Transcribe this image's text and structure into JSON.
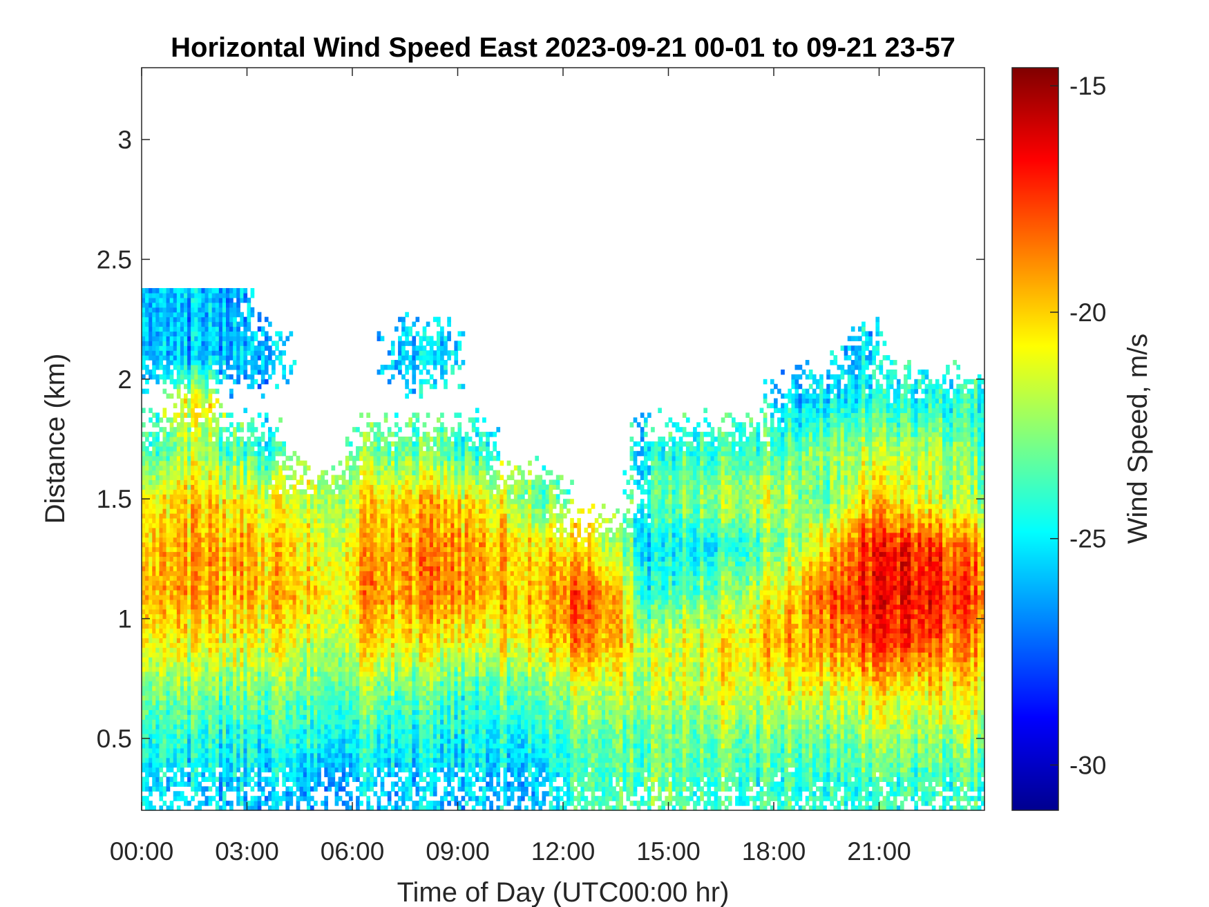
{
  "chart_data": {
    "type": "heatmap",
    "title": "Horizontal Wind Speed East 2023-09-21 00-01 to 09-21 23-57",
    "xlabel": "Time of Day (UTC00:00 hr)",
    "ylabel": "Distance (km)",
    "colorbar_label": "Wind Speed, m/s",
    "colormap": "jet",
    "xlim_hours": [
      0,
      24
    ],
    "ylim": [
      0.2,
      3.3
    ],
    "clim": [
      -31,
      -14.6
    ],
    "x_ticks": [
      {
        "value": 0,
        "label": "00:00"
      },
      {
        "value": 3,
        "label": "03:00"
      },
      {
        "value": 6,
        "label": "06:00"
      },
      {
        "value": 9,
        "label": "09:00"
      },
      {
        "value": 12,
        "label": "12:00"
      },
      {
        "value": 15,
        "label": "15:00"
      },
      {
        "value": 18,
        "label": "18:00"
      },
      {
        "value": 21,
        "label": "21:00"
      }
    ],
    "y_ticks": [
      {
        "value": 0.5,
        "label": "0.5"
      },
      {
        "value": 1,
        "label": "1"
      },
      {
        "value": 1.5,
        "label": "1.5"
      },
      {
        "value": 2,
        "label": "2"
      },
      {
        "value": 2.5,
        "label": "2.5"
      },
      {
        "value": 3,
        "label": "3"
      }
    ],
    "colorbar_ticks": [
      {
        "value": -15,
        "label": "-15"
      },
      {
        "value": -20,
        "label": "-20"
      },
      {
        "value": -25,
        "label": "-25"
      },
      {
        "value": -30,
        "label": "-30"
      }
    ],
    "grid": false,
    "heights_km": [
      0.3,
      0.5,
      0.7,
      0.9,
      1.1,
      1.3,
      1.5,
      1.7,
      1.9,
      2.1,
      2.3
    ],
    "times_hours": [
      0.5,
      1.5,
      2.5,
      3.5,
      4.5,
      5.5,
      6.5,
      7.5,
      8.5,
      9.5,
      10.5,
      11.5,
      12.5,
      13.5,
      14.5,
      15.5,
      16.5,
      17.5,
      18.5,
      19.5,
      20.5,
      21.5,
      22.5,
      23.5
    ],
    "values_by_time": [
      [
        -25.5,
        -24.5,
        -23,
        -21,
        -19.8,
        -20,
        -21,
        -24,
        null,
        -26,
        -26
      ],
      [
        -25.5,
        -24.5,
        -23,
        -21,
        -19.5,
        -19.5,
        -20,
        -22,
        -21,
        -26,
        -26
      ],
      [
        -25.5,
        -24.5,
        -23,
        -21,
        -19.5,
        -19.5,
        -20.5,
        -23.5,
        null,
        -26,
        -26
      ],
      [
        -26,
        -24.5,
        -23,
        -21,
        -19.8,
        -20,
        -21,
        -24.5,
        null,
        -26,
        null
      ],
      [
        -26,
        -24.5,
        -23,
        -21.5,
        -20,
        -20.5,
        -21.5,
        null,
        null,
        null,
        null
      ],
      [
        -26,
        -24.5,
        -23,
        -21.5,
        -20.5,
        -21,
        -22,
        null,
        null,
        null,
        null
      ],
      [
        -25.5,
        -24.5,
        -22.5,
        -20.5,
        -19,
        -19.5,
        -20.5,
        -23,
        null,
        null,
        null
      ],
      [
        -25.5,
        -24.5,
        -23,
        -20.5,
        -19,
        -19,
        -20,
        -23,
        null,
        -25.5,
        null
      ],
      [
        -26,
        -25,
        -23.5,
        -21,
        -19,
        -19,
        -20,
        -23.5,
        null,
        -25.5,
        null
      ],
      [
        -26,
        -25,
        -24,
        -21.5,
        -19.5,
        -19.5,
        -21,
        -24.5,
        null,
        null,
        null
      ],
      [
        -25.5,
        -24.5,
        -23,
        -20.5,
        -19.5,
        -19.5,
        -21.5,
        null,
        null,
        null,
        null
      ],
      [
        -25,
        -24,
        -22.5,
        -20,
        -19,
        -20,
        -23,
        null,
        null,
        null,
        null
      ],
      [
        -24,
        -23.5,
        -22,
        -19,
        -18,
        -20.5,
        null,
        null,
        null,
        null,
        null
      ],
      [
        -23.5,
        -23,
        -21.5,
        -19.5,
        -19,
        -22,
        null,
        null,
        null,
        null,
        null
      ],
      [
        -23,
        -23.5,
        -22,
        -22,
        -25,
        -25.5,
        -24,
        -25,
        null,
        null,
        null
      ],
      [
        -23.5,
        -23,
        -21.5,
        -21,
        -23,
        -24.5,
        -22.5,
        -24,
        null,
        null,
        null
      ],
      [
        -23.5,
        -22.5,
        -21,
        -20.5,
        -22.5,
        -24.5,
        -22,
        -24,
        null,
        null,
        null
      ],
      [
        -24,
        -23,
        -21.5,
        -20,
        -21.5,
        -23.5,
        -21.5,
        -23.5,
        null,
        null,
        null
      ],
      [
        -24,
        -23,
        -21,
        -19.5,
        -20,
        -22.5,
        -22,
        -23.5,
        -25.5,
        null,
        null
      ],
      [
        -24,
        -23,
        -21,
        -19,
        -18,
        -20,
        -23.5,
        -22,
        -25,
        null,
        null
      ],
      [
        -24,
        -22.5,
        -20.5,
        -18,
        -17,
        -17.5,
        -20,
        -22,
        -24.5,
        -25.5,
        null
      ],
      [
        -24,
        -22.5,
        -20.5,
        -17.5,
        -16.5,
        -17,
        -20.5,
        -22,
        -24.5,
        null,
        null
      ],
      [
        -24,
        -22.5,
        -20.5,
        -18,
        -16.8,
        -17.5,
        -21.5,
        -22,
        -24.5,
        null,
        null
      ],
      [
        -24,
        -22.5,
        -21,
        -19,
        -18,
        -19,
        -22.5,
        -23,
        -24.5,
        null,
        null
      ]
    ]
  }
}
